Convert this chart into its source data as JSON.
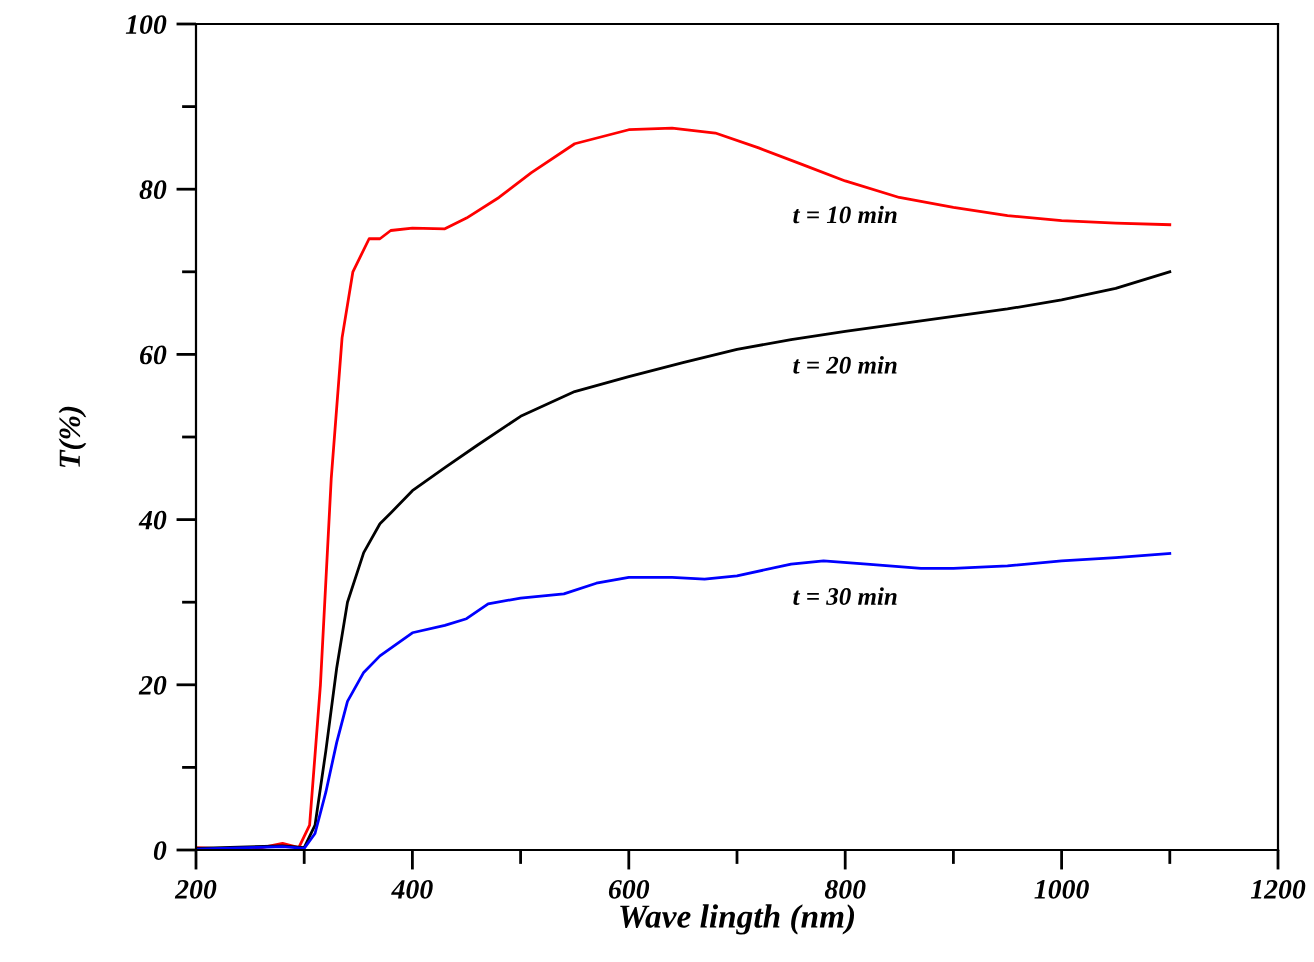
{
  "chart_data": {
    "type": "line",
    "xlabel": "Wave lingth (nm)",
    "ylabel": "T(%)",
    "xlim": [
      200,
      1200
    ],
    "xticks": [
      200,
      400,
      600,
      800,
      1000,
      1200
    ],
    "ylim": [
      0,
      100
    ],
    "yticks": [
      0,
      20,
      40,
      60,
      80,
      100
    ],
    "grid": false,
    "legend": false,
    "marker": "none",
    "line_style": "solid",
    "series": [
      {
        "name": "t = 10 min",
        "color": "#ff0000",
        "x": [
          200,
          250,
          280,
          295,
          305,
          315,
          325,
          335,
          345,
          360,
          370,
          380,
          400,
          430,
          450,
          480,
          510,
          550,
          600,
          640,
          680,
          720,
          760,
          800,
          850,
          900,
          950,
          1000,
          1050,
          1100
        ],
        "values": [
          0.3,
          0,
          0.8,
          0.3,
          3,
          20,
          45,
          62,
          70,
          74,
          74,
          75,
          75.3,
          75.2,
          76.5,
          79,
          82,
          85.5,
          87.2,
          87.4,
          86.8,
          85,
          83,
          81,
          79,
          77.8,
          76.8,
          76.2,
          75.9,
          75.7
        ]
      },
      {
        "name": "t = 20 min",
        "color": "#000000",
        "x": [
          200,
          280,
          300,
          310,
          320,
          330,
          340,
          355,
          370,
          380,
          400,
          430,
          460,
          500,
          550,
          600,
          650,
          700,
          750,
          800,
          850,
          900,
          950,
          1000,
          1050,
          1100
        ],
        "values": [
          0.2,
          0.5,
          0.3,
          3,
          12,
          22,
          30,
          36,
          39.5,
          40.8,
          43.5,
          46.3,
          49,
          52.5,
          55.5,
          57.3,
          59,
          60.6,
          61.8,
          62.8,
          63.7,
          64.6,
          65.5,
          66.6,
          68,
          70
        ]
      },
      {
        "name": "t = 30 min",
        "color": "#0000ff",
        "x": [
          200,
          280,
          300,
          310,
          320,
          330,
          340,
          355,
          370,
          400,
          430,
          450,
          470,
          500,
          540,
          570,
          600,
          640,
          670,
          700,
          750,
          780,
          820,
          870,
          900,
          950,
          1000,
          1050,
          1100
        ],
        "values": [
          0.1,
          0.4,
          0.2,
          2,
          7,
          13,
          18,
          21.5,
          23.5,
          26.3,
          27.2,
          28,
          29.8,
          30.5,
          31,
          32.3,
          33,
          33,
          32.8,
          33.2,
          34.6,
          35,
          34.6,
          34.1,
          34.1,
          34.4,
          35,
          35.4,
          35.9
        ]
      }
    ]
  }
}
